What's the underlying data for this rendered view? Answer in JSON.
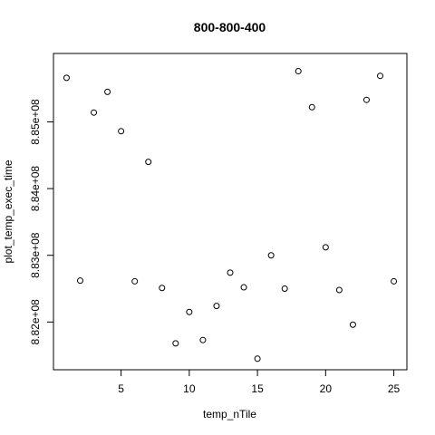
{
  "chart_data": {
    "type": "scatter",
    "title": "800-800-400",
    "xlabel": "temp_nTile",
    "ylabel": "plot_temp_exec_time",
    "xlim": [
      1,
      25
    ],
    "ylim": [
      881460000,
      885850000
    ],
    "x_ticks": [
      5,
      10,
      15,
      20,
      25
    ],
    "x_tick_labels": [
      "5",
      "10",
      "15",
      "20",
      "25"
    ],
    "y_ticks": [
      882000000,
      883000000,
      884000000,
      885000000
    ],
    "y_tick_labels": [
      "8.82e+08",
      "8.83e+08",
      "8.84e+08",
      "8.85e+08"
    ],
    "marker": "open-circle",
    "grid": false,
    "series": [
      {
        "x": [
          1,
          2,
          3,
          4,
          5,
          6,
          7,
          8,
          9,
          10,
          11,
          12,
          13,
          14,
          15,
          16,
          17,
          18,
          19,
          20,
          21,
          22,
          23,
          24,
          25
        ],
        "y": [
          885660000,
          882620000,
          885140000,
          885450000,
          884860000,
          882610000,
          884400000,
          882510000,
          881680000,
          882150000,
          881730000,
          882240000,
          882740000,
          882520000,
          881450000,
          883000000,
          882500000,
          885760000,
          885220000,
          883120000,
          882480000,
          881960000,
          885330000,
          885690000,
          882610000
        ]
      }
    ]
  }
}
